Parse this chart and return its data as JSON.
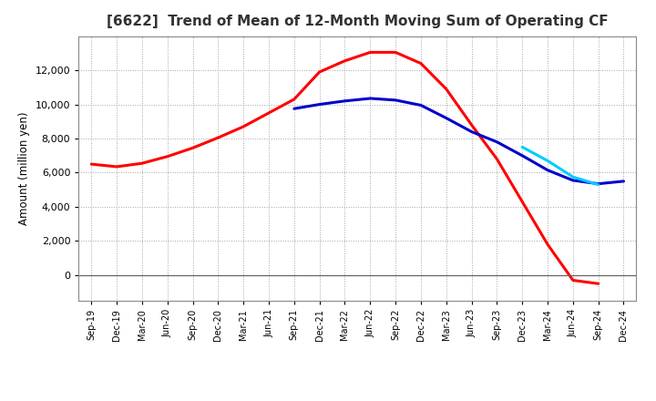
{
  "title": "[6622]  Trend of Mean of 12-Month Moving Sum of Operating CF",
  "ylabel": "Amount (million yen)",
  "background_color": "#ffffff",
  "grid_color": "#999999",
  "x_labels": [
    "Sep-19",
    "Dec-19",
    "Mar-20",
    "Jun-20",
    "Sep-20",
    "Dec-20",
    "Mar-21",
    "Jun-21",
    "Sep-21",
    "Dec-21",
    "Mar-22",
    "Jun-22",
    "Sep-22",
    "Dec-22",
    "Mar-23",
    "Jun-23",
    "Sep-23",
    "Dec-23",
    "Mar-24",
    "Jun-24",
    "Sep-24",
    "Dec-24"
  ],
  "series": {
    "3 Years": {
      "color": "#ff0000",
      "values": [
        6500,
        6350,
        6550,
        6950,
        7450,
        8050,
        8700,
        9500,
        10300,
        11900,
        12550,
        13050,
        13050,
        12400,
        10900,
        8800,
        6800,
        4300,
        1800,
        -300,
        -500,
        null
      ]
    },
    "5 Years": {
      "color": "#0000cc",
      "values": [
        null,
        null,
        null,
        null,
        null,
        null,
        null,
        null,
        9750,
        10000,
        10200,
        10350,
        10250,
        9950,
        9200,
        8400,
        7800,
        7000,
        6150,
        5550,
        5350,
        5500
      ]
    },
    "7 Years": {
      "color": "#00ccff",
      "values": [
        null,
        null,
        null,
        null,
        null,
        null,
        null,
        null,
        null,
        null,
        null,
        null,
        null,
        null,
        null,
        null,
        null,
        7500,
        6700,
        5750,
        5300,
        null
      ]
    },
    "10 Years": {
      "color": "#008000",
      "values": [
        null,
        null,
        null,
        null,
        null,
        null,
        null,
        null,
        null,
        null,
        null,
        null,
        null,
        null,
        null,
        null,
        null,
        null,
        null,
        null,
        null,
        null
      ]
    }
  },
  "ylim": [
    -1500,
    14000
  ],
  "yticks": [
    0,
    2000,
    4000,
    6000,
    8000,
    10000,
    12000
  ],
  "legend_colors": {
    "3 Years": "#ff0000",
    "5 Years": "#0000cc",
    "7 Years": "#00ccff",
    "10 Years": "#008000"
  },
  "title_fontsize": 11,
  "ylabel_fontsize": 8.5,
  "tick_fontsize": 8,
  "xtick_fontsize": 7
}
